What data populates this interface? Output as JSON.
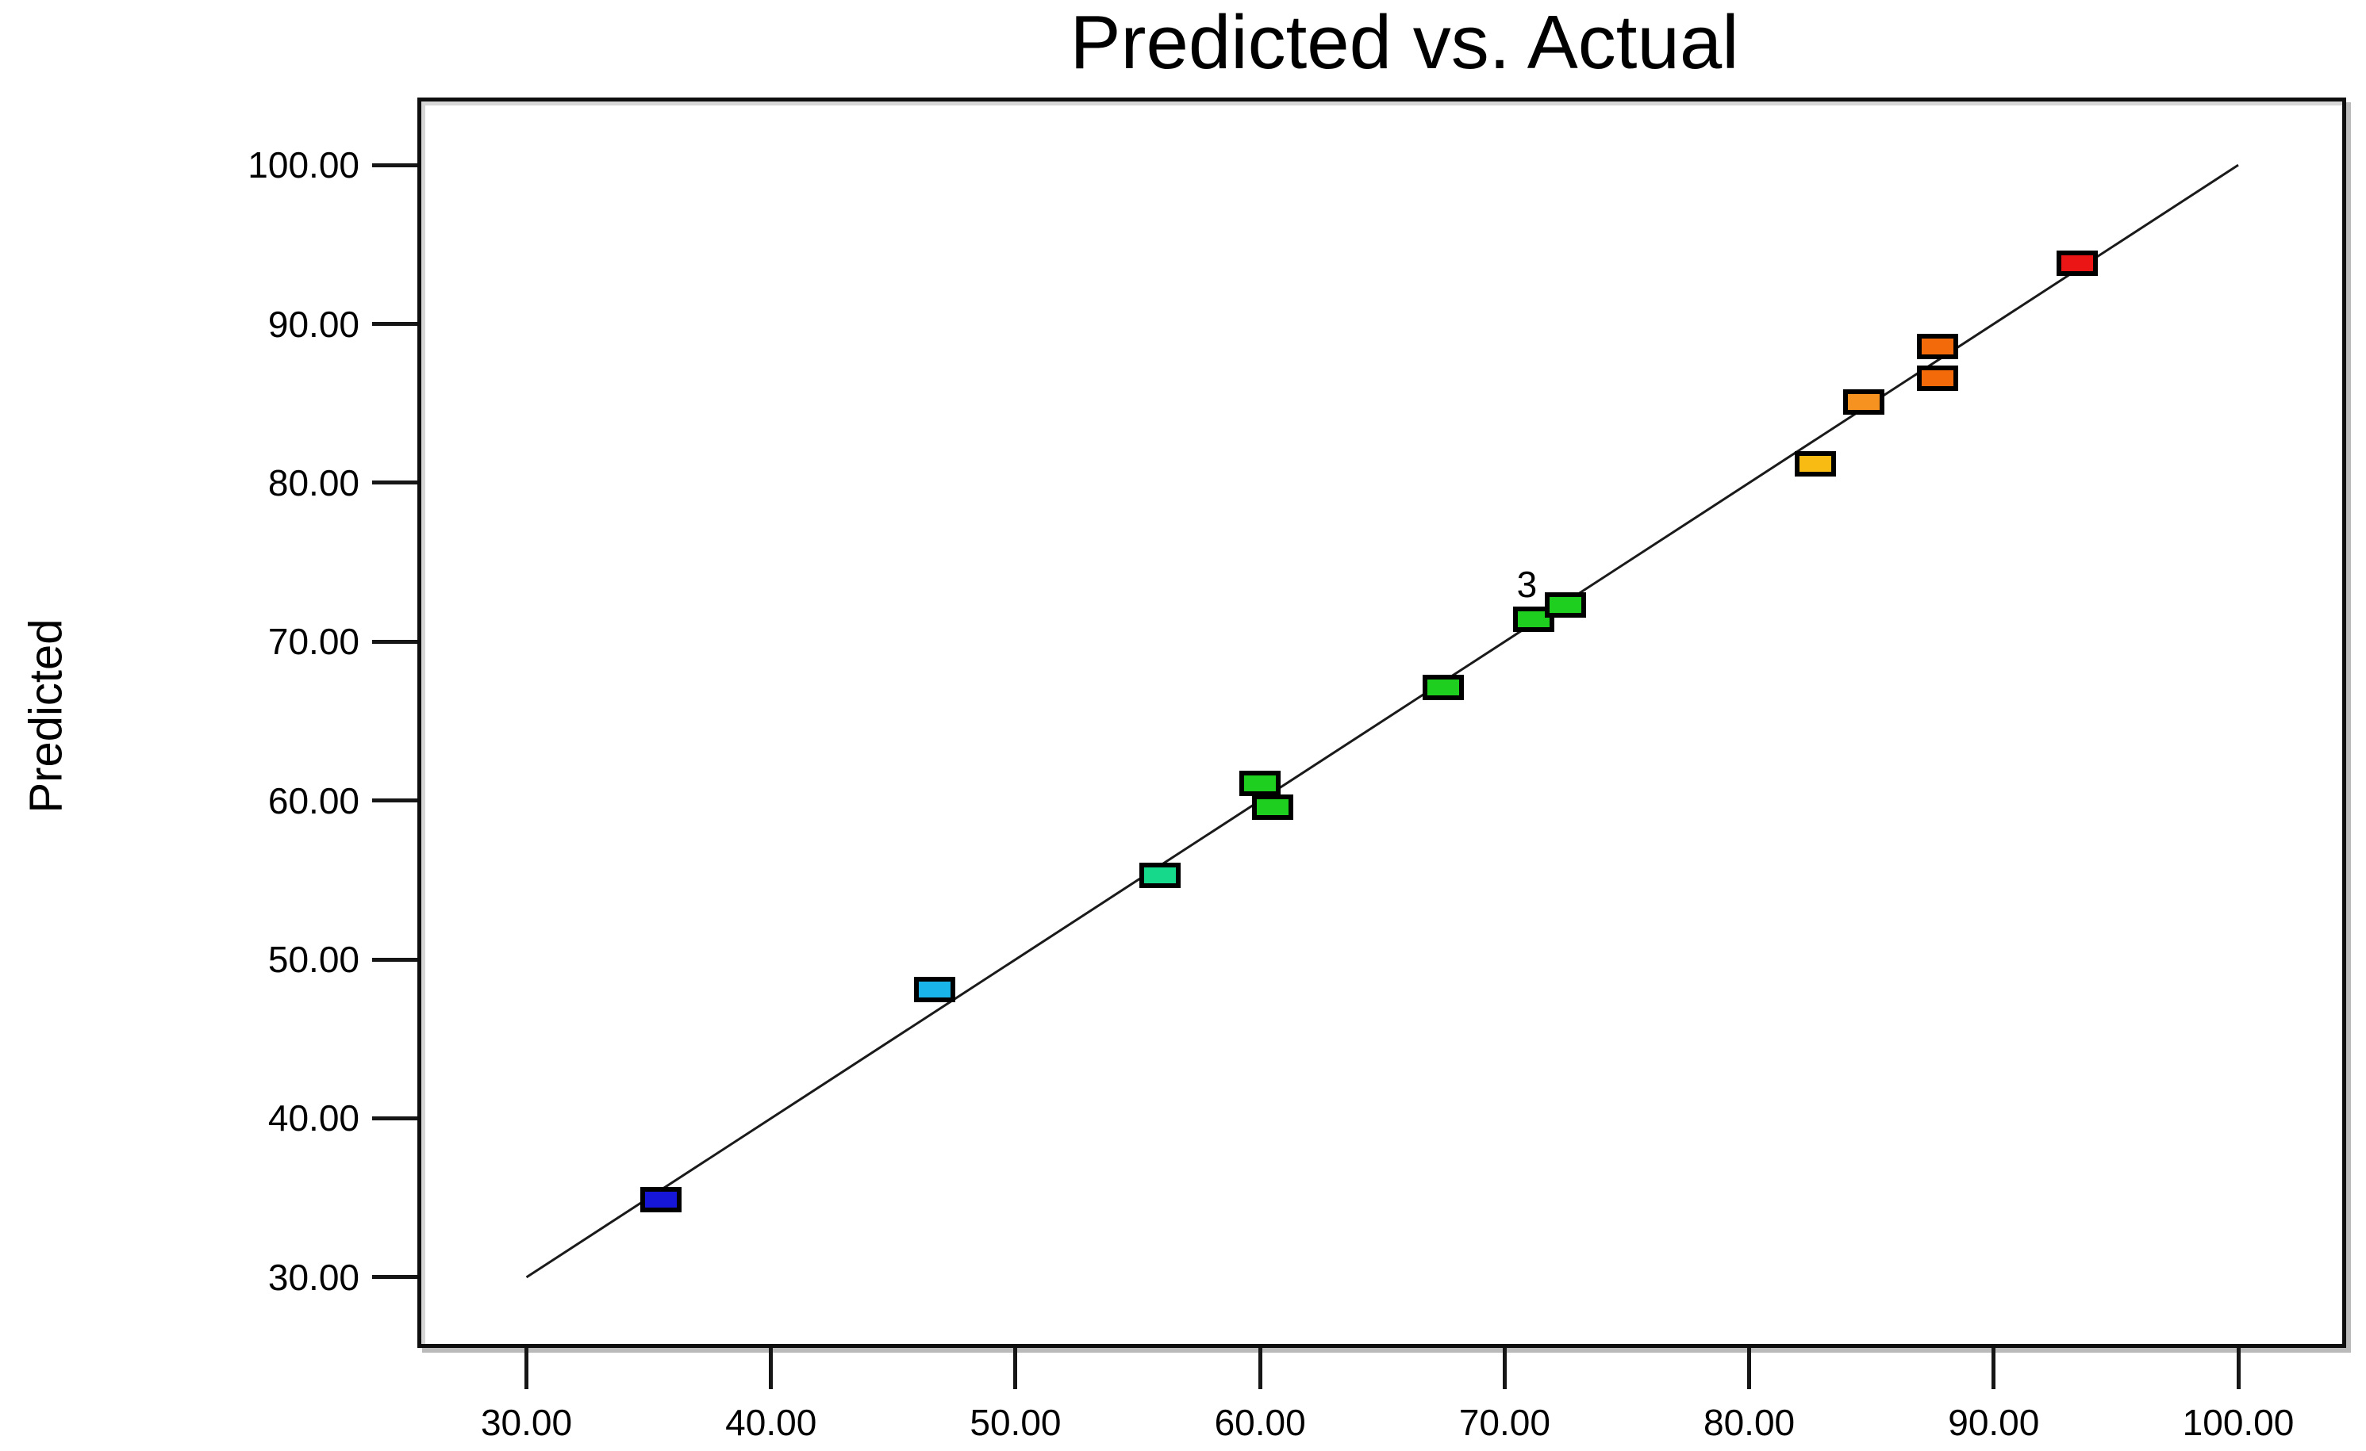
{
  "title": "Predicted vs. Actual",
  "chart_data": {
    "type": "scatter",
    "title": "Predicted vs. Actual",
    "xlabel": "",
    "ylabel": "Predicted",
    "grid": false,
    "xlim": [
      25.7,
      104.25
    ],
    "ylim": [
      25.8,
      104.0
    ],
    "x_tick_values": [
      30,
      40,
      50,
      60,
      70,
      80,
      90,
      100
    ],
    "x_tick_labels": [
      "30.00",
      "40.00",
      "50.00",
      "60.00",
      "70.00",
      "80.00",
      "90.00",
      "100.00"
    ],
    "y_tick_values": [
      30,
      40,
      50,
      60,
      70,
      80,
      90,
      100
    ],
    "y_tick_labels": [
      "30.00",
      "40.00",
      "50.00",
      "60.00",
      "70.00",
      "80.00",
      "90.00",
      "100.00"
    ],
    "identity_line": {
      "x1": 30,
      "y1": 30,
      "x2": 100,
      "y2": 100,
      "color": "#1a1a1a"
    },
    "points": [
      {
        "actual": 35.5,
        "predicted": 34.9,
        "color": "#1616d9"
      },
      {
        "actual": 46.7,
        "predicted": 48.1,
        "color": "#19b5ea"
      },
      {
        "actual": 55.9,
        "predicted": 55.3,
        "color": "#16d98c"
      },
      {
        "actual": 60.0,
        "predicted": 61.1,
        "color": "#1fcf1f"
      },
      {
        "actual": 60.5,
        "predicted": 59.6,
        "color": "#1fcf1f"
      },
      {
        "actual": 67.5,
        "predicted": 67.1,
        "color": "#1fcf1f"
      },
      {
        "actual": 71.2,
        "predicted": 71.4,
        "color": "#1fcf1f",
        "count_label": "3"
      },
      {
        "actual": 72.5,
        "predicted": 72.3,
        "color": "#1fcf1f"
      },
      {
        "actual": 82.7,
        "predicted": 81.2,
        "color": "#f7bb13"
      },
      {
        "actual": 84.7,
        "predicted": 85.1,
        "color": "#f6921f"
      },
      {
        "actual": 87.7,
        "predicted": 88.6,
        "color": "#f36a0b"
      },
      {
        "actual": 87.7,
        "predicted": 86.6,
        "color": "#f36a0b"
      },
      {
        "actual": 93.4,
        "predicted": 93.8,
        "color": "#ec1515"
      }
    ]
  }
}
